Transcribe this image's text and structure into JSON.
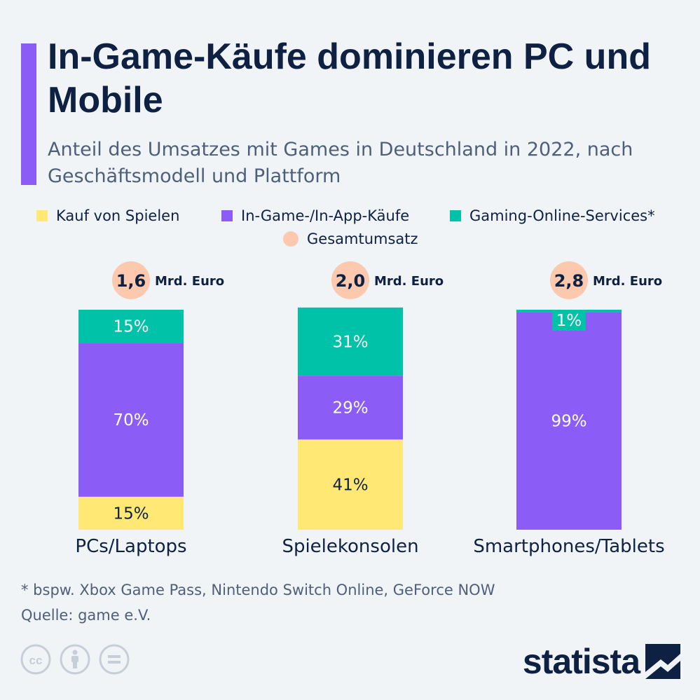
{
  "header": {
    "title": "In-Game-Käufe dominieren PC und Mobile",
    "subtitle": "Anteil des Umsatzes mit Games in Deutschland in 2022, nach Geschäftsmodell und Plattform"
  },
  "colors": {
    "accent": "#8b5cf6",
    "kauf": "#ffe873",
    "ingame": "#8b5cf6",
    "online": "#00c2a8",
    "gesamt": "#fcc8ae",
    "text_dark": "#0f2142",
    "text_muted": "#4e6079"
  },
  "legend": {
    "items": [
      {
        "label": "Kauf von Spielen",
        "color": "#ffe873",
        "shape": "square"
      },
      {
        "label": "In-Game-/In-App-Käufe",
        "color": "#8b5cf6",
        "shape": "square"
      },
      {
        "label": "Gaming-Online-Services*",
        "color": "#00c2a8",
        "shape": "square"
      },
      {
        "label": "Gesamtumsatz",
        "color": "#fcc8ae",
        "shape": "circle"
      }
    ]
  },
  "chart_data": {
    "type": "bar",
    "stacked": true,
    "normalized": true,
    "categories": [
      "PCs/Laptops",
      "Spielekonsolen",
      "Smartphones/Tablets"
    ],
    "series": [
      {
        "name": "Kauf von Spielen",
        "values": [
          15,
          41,
          0
        ],
        "labels": [
          "15%",
          "41%",
          ""
        ]
      },
      {
        "name": "In-Game-/In-App-Käufe",
        "values": [
          70,
          29,
          99
        ],
        "labels": [
          "70%",
          "29%",
          "99%"
        ]
      },
      {
        "name": "Gaming-Online-Services*",
        "values": [
          15,
          31,
          1
        ],
        "labels": [
          "15%",
          "31%",
          "1%"
        ]
      }
    ],
    "totals": {
      "name": "Gesamtumsatz",
      "values": [
        1.6,
        2.0,
        2.8
      ],
      "labels": [
        "1,6",
        "2,0",
        "2,8"
      ],
      "unit": "Mrd. Euro"
    }
  },
  "footer": {
    "footnote": "* bspw. Xbox Game Pass, Nintendo Switch Online, GeForce NOW",
    "source": "Quelle: game e.V.",
    "brand": "statista",
    "license_icons": [
      "cc-icon",
      "by-icon",
      "nd-icon"
    ]
  }
}
